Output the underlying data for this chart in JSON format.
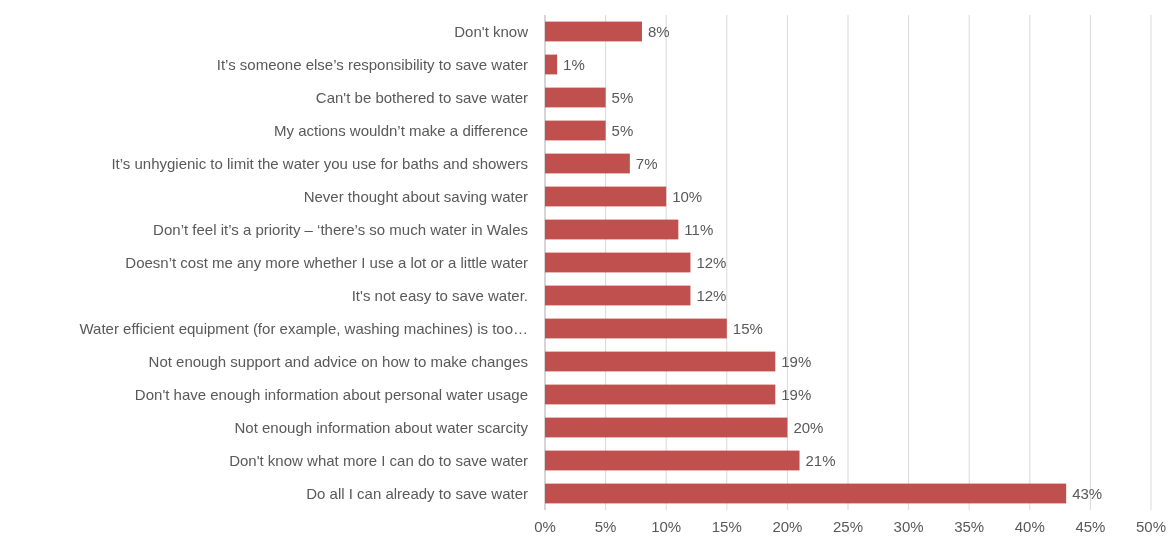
{
  "chart_data": {
    "type": "bar",
    "orientation": "horizontal",
    "categories": [
      "Don't know",
      "It’s someone else’s responsibility to save water",
      "Can't be bothered to save water",
      "My actions wouldn’t make a difference",
      "It’s unhygienic to limit the water you use for baths and showers",
      "Never thought about saving water",
      "Don’t feel it’s a priority – ‘there’s so much water in Wales",
      "Doesn’t cost me any more whether I use a lot or a little water",
      "It's not easy to save water.",
      "Water efficient equipment (for example, washing machines) is too…",
      "Not enough support and advice on how to make changes",
      "Don't have enough information about personal water usage",
      "Not enough information about water scarcity",
      "Don't know what more I can do to save water",
      "Do all I can already to save water"
    ],
    "values": [
      8,
      1,
      5,
      5,
      7,
      10,
      11,
      12,
      12,
      15,
      19,
      19,
      20,
      21,
      43
    ],
    "value_labels": [
      "8%",
      "1%",
      "5%",
      "5%",
      "7%",
      "10%",
      "11%",
      "12%",
      "12%",
      "15%",
      "19%",
      "19%",
      "20%",
      "21%",
      "43%"
    ],
    "color": "#c0504d",
    "xlim": [
      0,
      50
    ],
    "xticks": [
      {
        "value": 0,
        "label": "0%"
      },
      {
        "value": 5,
        "label": "5%"
      },
      {
        "value": 10,
        "label": "10%"
      },
      {
        "value": 15,
        "label": "15%"
      },
      {
        "value": 20,
        "label": "20%"
      },
      {
        "value": 25,
        "label": "25%"
      },
      {
        "value": 30,
        "label": "30%"
      },
      {
        "value": 35,
        "label": "35%"
      },
      {
        "value": 40,
        "label": "40%"
      },
      {
        "value": 45,
        "label": "45%"
      },
      {
        "value": 50,
        "label": "50%"
      }
    ],
    "grid": "x"
  }
}
